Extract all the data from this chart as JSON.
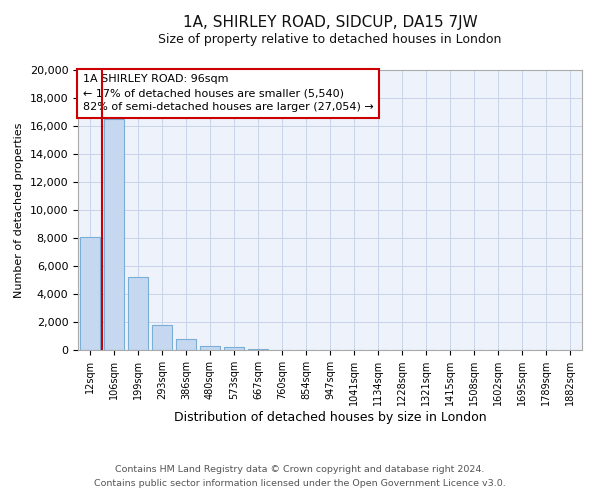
{
  "title1": "1A, SHIRLEY ROAD, SIDCUP, DA15 7JW",
  "title2": "Size of property relative to detached houses in London",
  "xlabel": "Distribution of detached houses by size in London",
  "ylabel": "Number of detached properties",
  "categories": [
    "12sqm",
    "106sqm",
    "199sqm",
    "293sqm",
    "386sqm",
    "480sqm",
    "573sqm",
    "667sqm",
    "760sqm",
    "854sqm",
    "947sqm",
    "1041sqm",
    "1134sqm",
    "1228sqm",
    "1321sqm",
    "1415sqm",
    "1508sqm",
    "1602sqm",
    "1695sqm",
    "1789sqm",
    "1882sqm"
  ],
  "values": [
    8100,
    16500,
    5200,
    1800,
    800,
    300,
    200,
    50,
    0,
    0,
    0,
    0,
    0,
    0,
    0,
    0,
    0,
    0,
    0,
    0,
    0
  ],
  "bar_color": "#c5d8f0",
  "bar_edge_color": "#7aaed6",
  "vline_x": -0.5,
  "vline_color": "#cc0000",
  "annotation_line1": "1A SHIRLEY ROAD: 96sqm",
  "annotation_line2": "← 17% of detached houses are smaller (5,540)",
  "annotation_line3": "82% of semi-detached houses are larger (27,054) →",
  "annotation_box_color": "#ffffff",
  "annotation_box_edge": "#cc0000",
  "ylim": [
    0,
    20000
  ],
  "yticks": [
    0,
    2000,
    4000,
    6000,
    8000,
    10000,
    12000,
    14000,
    16000,
    18000,
    20000
  ],
  "footer": "Contains HM Land Registry data © Crown copyright and database right 2024.\nContains public sector information licensed under the Open Government Licence v3.0.",
  "grid_color": "#c8d4e8",
  "bg_color": "#eef2fa",
  "title1_fontsize": 11,
  "title2_fontsize": 9,
  "xlabel_fontsize": 9,
  "ylabel_fontsize": 8,
  "ytick_fontsize": 8,
  "xtick_fontsize": 7
}
